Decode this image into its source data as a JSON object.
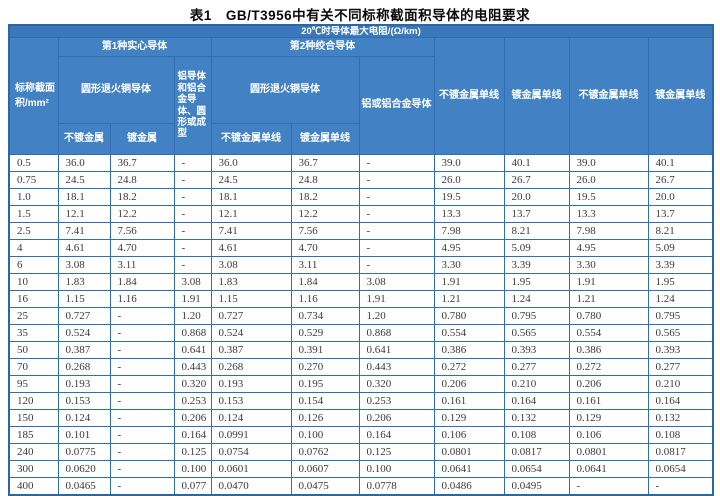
{
  "title": "表1　GB/T3956中有关不同标称截面积导体的电阻要求",
  "table": {
    "header": {
      "top": "20℃时导体最大电阻/(Ω/km)",
      "area_label": "标称截面积/mm²",
      "group1": "第1种实心导体",
      "group2": "第2种绞合导体",
      "group1_copper": "圆形退火铜导体",
      "group1_aluminum": "铝导体和铝合金导体、圆形或成型",
      "group2_copper": "圆形退火铜导体",
      "group2_aluminum": "铝或铝合金导体",
      "group1_sub_unplated": "不镀金属",
      "group1_sub_plated": "镀金属",
      "group2_sub_unplated": "不镀金属单线",
      "group2_sub_plated": "镀金属单线",
      "right_columns": [
        "不镀金属单线",
        "镀金属单线",
        "不镀金属单线",
        "镀金属单线"
      ]
    },
    "rows": [
      [
        "0.5",
        "36.0",
        "36.7",
        "-",
        "36.0",
        "36.7",
        "-",
        "39.0",
        "40.1",
        "39.0",
        "40.1"
      ],
      [
        "0.75",
        "24.5",
        "24.8",
        "-",
        "24.5",
        "24.8",
        "-",
        "26.0",
        "26.7",
        "26.0",
        "26.7"
      ],
      [
        "1.0",
        "18.1",
        "18.2",
        "-",
        "18.1",
        "18.2",
        "-",
        "19.5",
        "20.0",
        "19.5",
        "20.0"
      ],
      [
        "1.5",
        "12.1",
        "12.2",
        "-",
        "12.1",
        "12.2",
        "-",
        "13.3",
        "13.7",
        "13.3",
        "13.7"
      ],
      [
        "2.5",
        "7.41",
        "7.56",
        "-",
        "7.41",
        "7.56",
        "-",
        "7.98",
        "8.21",
        "7.98",
        "8.21"
      ],
      [
        "4",
        "4.61",
        "4.70",
        "-",
        "4.61",
        "4.70",
        "-",
        "4.95",
        "5.09",
        "4.95",
        "5.09"
      ],
      [
        "6",
        "3.08",
        "3.11",
        "-",
        "3.08",
        "3.11",
        "-",
        "3.30",
        "3.39",
        "3.30",
        "3.39"
      ],
      [
        "10",
        "1.83",
        "1.84",
        "3.08",
        "1.83",
        "1.84",
        "3.08",
        "1.91",
        "1.95",
        "1.91",
        "1.95"
      ],
      [
        "16",
        "1.15",
        "1.16",
        "1.91",
        "1.15",
        "1.16",
        "1.91",
        "1.21",
        "1.24",
        "1.21",
        "1.24"
      ],
      [
        "25",
        "0.727",
        "-",
        "1.20",
        "0.727",
        "0.734",
        "1.20",
        "0.780",
        "0.795",
        "0.780",
        "0.795"
      ],
      [
        "35",
        "0.524",
        "-",
        "0.868",
        "0.524",
        "0.529",
        "0.868",
        "0.554",
        "0.565",
        "0.554",
        "0.565"
      ],
      [
        "50",
        "0.387",
        "-",
        "0.641",
        "0.387",
        "0.391",
        "0.641",
        "0.386",
        "0.393",
        "0.386",
        "0.393"
      ],
      [
        "70",
        "0.268",
        "-",
        "0.443",
        "0.268",
        "0.270",
        "0.443",
        "0.272",
        "0.277",
        "0.272",
        "0.277"
      ],
      [
        "95",
        "0.193",
        "-",
        "0.320",
        "0.193",
        "0.195",
        "0.320",
        "0.206",
        "0.210",
        "0.206",
        "0.210"
      ],
      [
        "120",
        "0.153",
        "-",
        "0.253",
        "0.153",
        "0.154",
        "0.253",
        "0.161",
        "0.164",
        "0.161",
        "0.164"
      ],
      [
        "150",
        "0.124",
        "-",
        "0.206",
        "0.124",
        "0.126",
        "0.206",
        "0.129",
        "0.132",
        "0.129",
        "0.132"
      ],
      [
        "185",
        "0.101",
        "-",
        "0.164",
        "0.0991",
        "0.100",
        "0.164",
        "0.106",
        "0.108",
        "0.106",
        "0.108"
      ],
      [
        "240",
        "0.0775",
        "-",
        "0.125",
        "0.0754",
        "0.0762",
        "0.125",
        "0.0801",
        "0.0817",
        "0.0801",
        "0.0817"
      ],
      [
        "300",
        "0.0620",
        "-",
        "0.100",
        "0.0601",
        "0.0607",
        "0.100",
        "0.0641",
        "0.0654",
        "0.0641",
        "0.0654"
      ],
      [
        "400",
        "0.0465",
        "-",
        "0.077",
        "0.0470",
        "0.0475",
        "0.0778",
        "0.0486",
        "0.0495",
        "-",
        "-"
      ]
    ]
  }
}
